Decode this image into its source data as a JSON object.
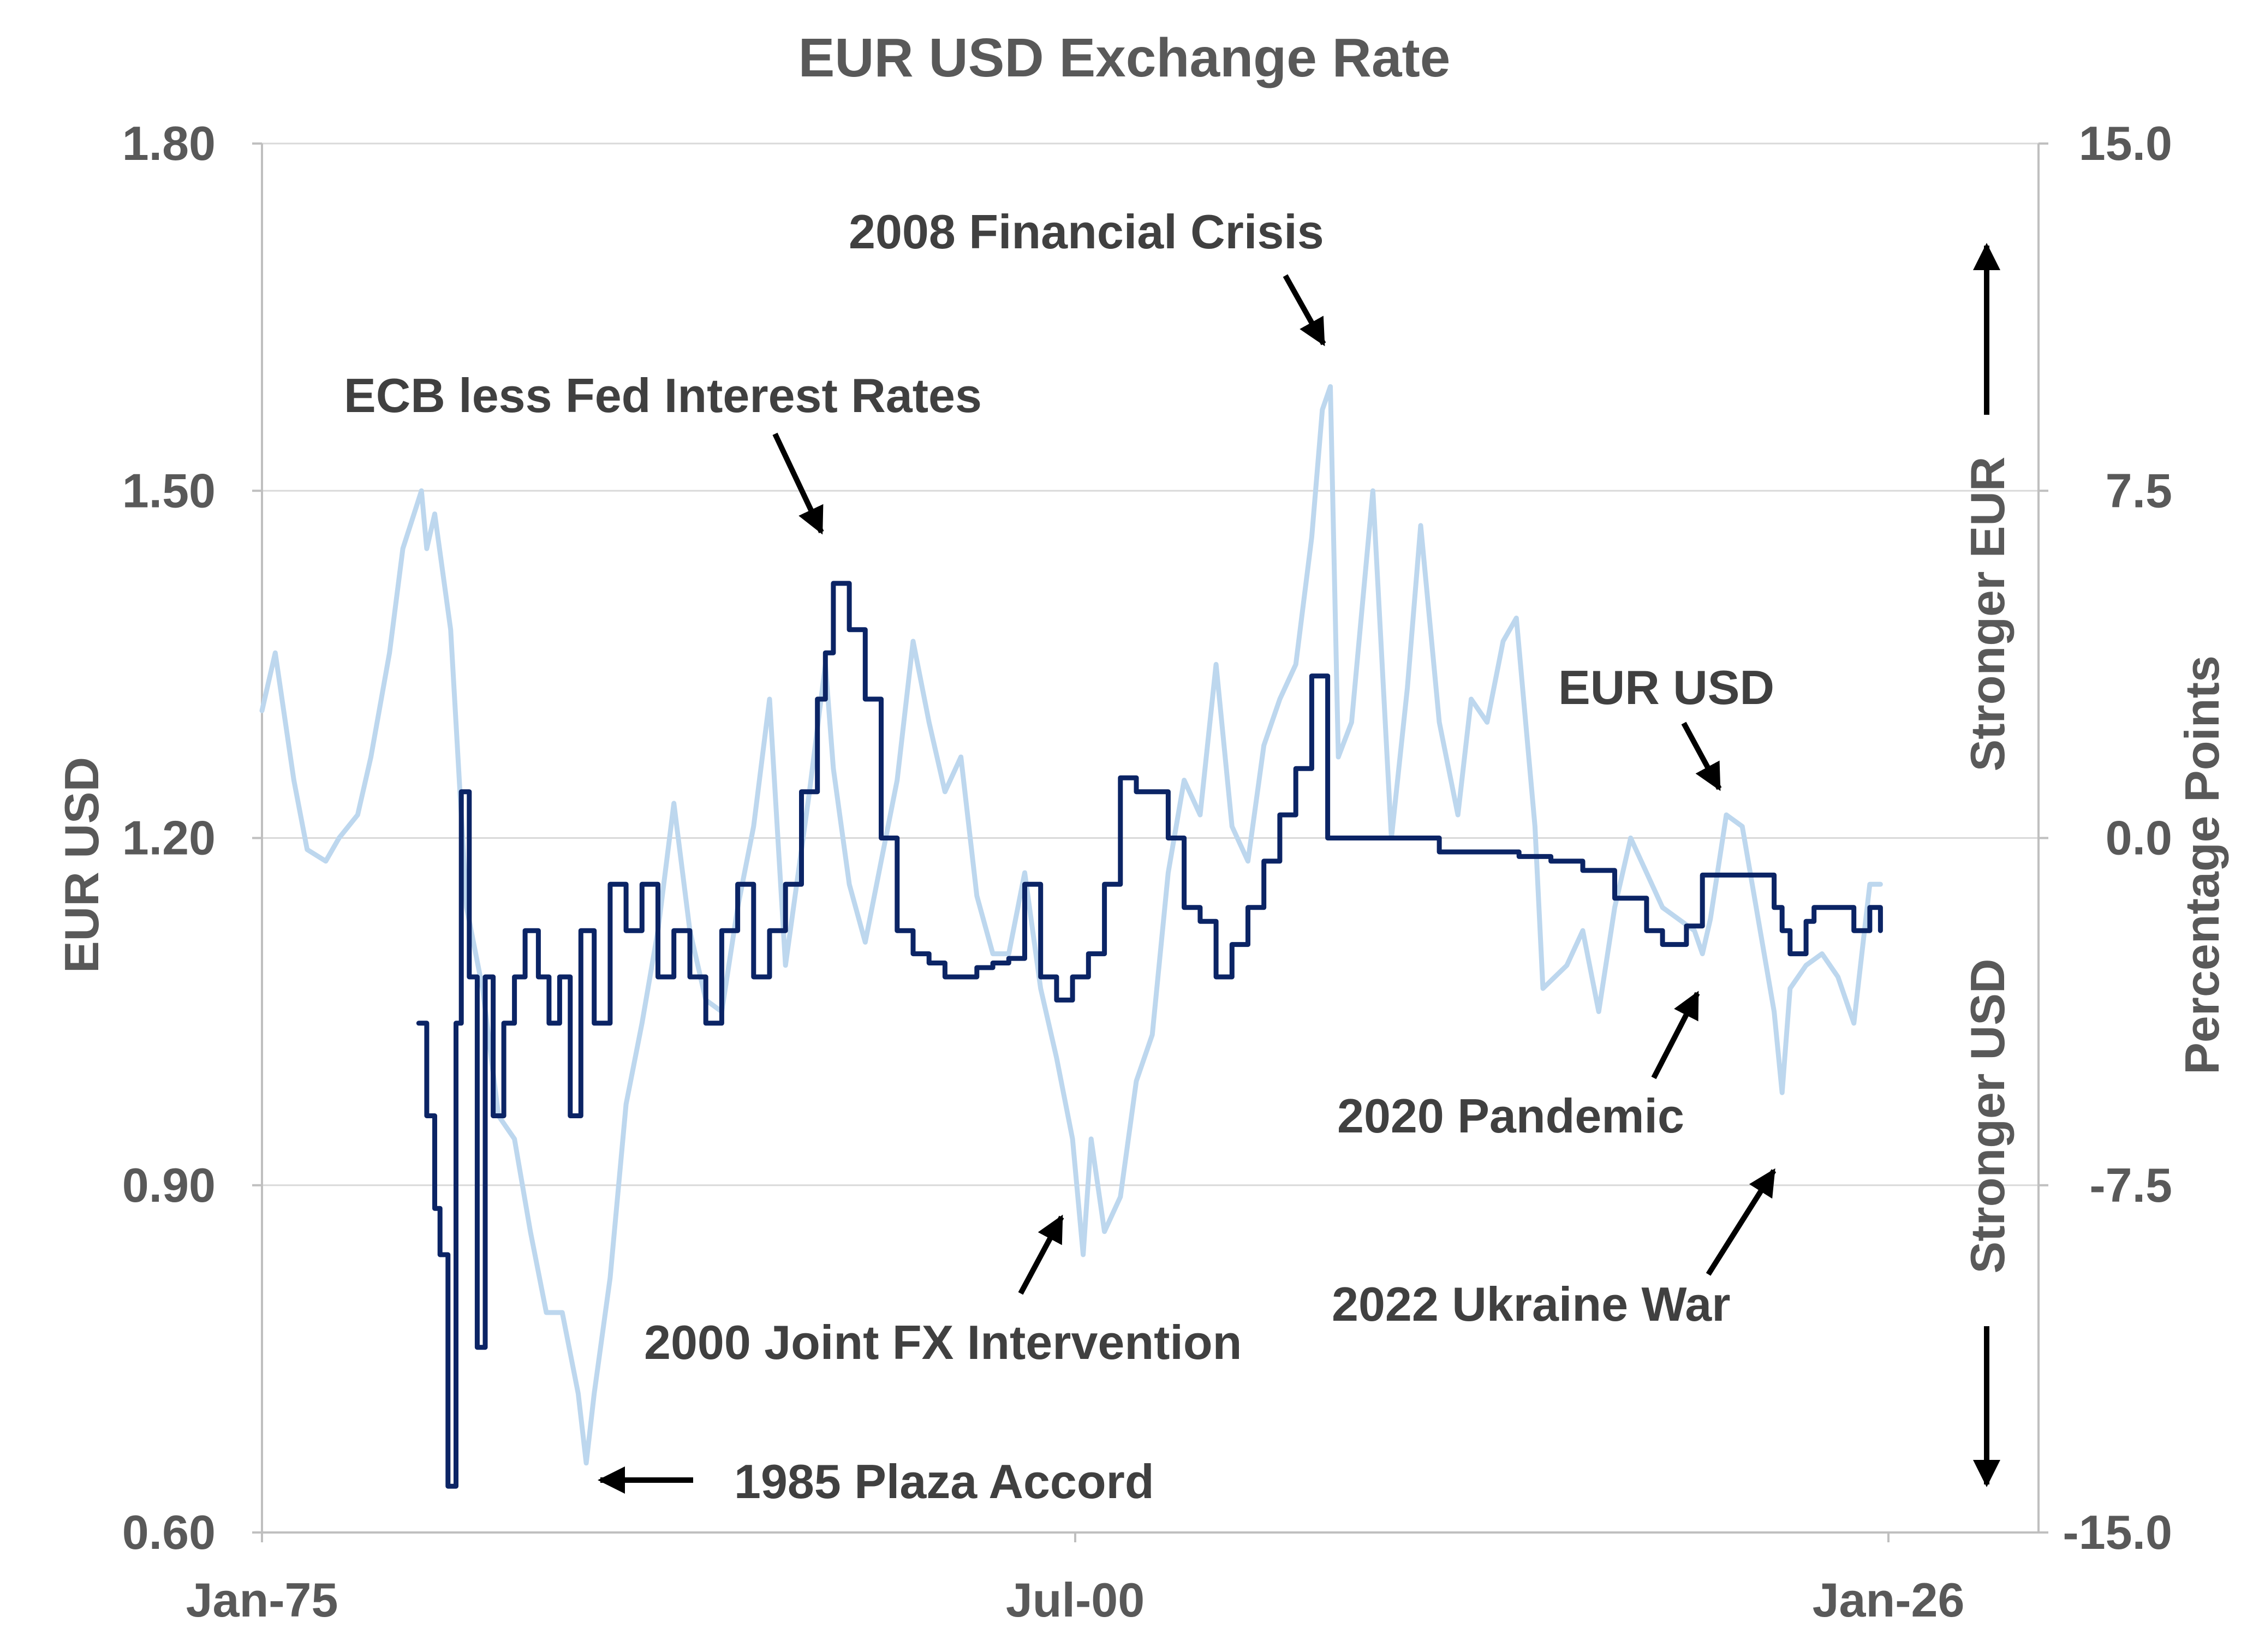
{
  "chart_data": {
    "type": "line",
    "title": "EUR USD Exchange Rate",
    "ylabel": "EUR USD",
    "y2label": "Percentage  Points",
    "ylim": [
      0.6,
      1.8
    ],
    "y2lim": [
      -15.0,
      15.0
    ],
    "xlim": [
      "1975-01",
      "2026-01"
    ],
    "grid": true,
    "x_ticks": [
      "Jan-75",
      "Jul-00",
      "Jan-26"
    ],
    "y_ticks": [
      "1.80",
      "1.50",
      "1.20",
      "0.90",
      "0.60"
    ],
    "y2_ticks": [
      "15.0",
      "7.5",
      "0.0",
      "-7.5",
      "-15.0"
    ],
    "direction_labels": {
      "upper": "Stronger  EUR",
      "lower": "Stronger  USD"
    },
    "annotations": [
      {
        "text": "2008 Financial Crisis",
        "x": "2008-07",
        "y": 1.59
      },
      {
        "text": "ECB less Fed Interest Rates",
        "x": "1992-06",
        "y": 5.6
      },
      {
        "text": "EUR USD",
        "x": "2021-05",
        "y": 1.23
      },
      {
        "text": "2020 Pandemic",
        "x": "2020-03",
        "y": 1.07
      },
      {
        "text": "2000 Joint FX Intervention",
        "x": "2000-10",
        "y": 0.85
      },
      {
        "text": "2022 Ukraine War",
        "x": "2022-09",
        "y": 0.96
      },
      {
        "text": "1985 Plaza Accord",
        "x": "1985-02",
        "y": 0.65
      }
    ],
    "series": [
      {
        "name": "EUR USD",
        "axis": "left",
        "color": "#bdd7ee",
        "x": [
          "1975-01",
          "1975-06",
          "1976-01",
          "1976-06",
          "1977-01",
          "1977-06",
          "1978-01",
          "1978-06",
          "1979-01",
          "1979-06",
          "1980-01",
          "1980-03",
          "1980-06",
          "1980-12",
          "1981-06",
          "1981-12",
          "1982-06",
          "1982-12",
          "1983-06",
          "1983-12",
          "1984-06",
          "1984-12",
          "1985-03",
          "1985-06",
          "1985-12",
          "1986-06",
          "1986-12",
          "1987-06",
          "1987-12",
          "1988-06",
          "1988-12",
          "1989-06",
          "1989-12",
          "1990-06",
          "1990-12",
          "1991-06",
          "1991-12",
          "1992-03",
          "1992-09",
          "1992-12",
          "1993-06",
          "1993-12",
          "1994-06",
          "1994-12",
          "1995-06",
          "1995-12",
          "1996-06",
          "1996-12",
          "1997-06",
          "1997-12",
          "1998-06",
          "1998-12",
          "1999-06",
          "1999-12",
          "2000-06",
          "2000-10",
          "2001-01",
          "2001-06",
          "2001-12",
          "2002-06",
          "2002-12",
          "2003-06",
          "2003-12",
          "2004-06",
          "2004-12",
          "2005-06",
          "2005-12",
          "2006-06",
          "2006-12",
          "2007-06",
          "2007-12",
          "2008-04",
          "2008-07",
          "2008-10",
          "2009-03",
          "2009-11",
          "2010-06",
          "2010-12",
          "2011-05",
          "2011-12",
          "2012-07",
          "2012-12",
          "2013-06",
          "2013-12",
          "2014-05",
          "2014-12",
          "2015-03",
          "2015-12",
          "2016-06",
          "2016-12",
          "2017-06",
          "2017-12",
          "2018-06",
          "2018-12",
          "2019-06",
          "2019-12",
          "2020-03",
          "2020-06",
          "2020-12",
          "2021-06",
          "2021-12",
          "2022-06",
          "2022-09",
          "2022-12",
          "2023-06",
          "2023-12",
          "2024-06",
          "2024-12",
          "2025-06",
          "2025-10"
        ],
        "values": [
          1.31,
          1.36,
          1.25,
          1.19,
          1.18,
          1.2,
          1.22,
          1.27,
          1.36,
          1.45,
          1.5,
          1.45,
          1.48,
          1.38,
          1.14,
          1.07,
          0.96,
          0.94,
          0.86,
          0.79,
          0.79,
          0.72,
          0.66,
          0.72,
          0.82,
          0.97,
          1.04,
          1.12,
          1.23,
          1.12,
          1.06,
          1.05,
          1.14,
          1.21,
          1.32,
          1.09,
          1.19,
          1.24,
          1.35,
          1.26,
          1.16,
          1.11,
          1.18,
          1.25,
          1.37,
          1.3,
          1.24,
          1.27,
          1.15,
          1.1,
          1.1,
          1.17,
          1.07,
          1.01,
          0.94,
          0.84,
          0.94,
          0.86,
          0.89,
          0.99,
          1.03,
          1.17,
          1.25,
          1.22,
          1.35,
          1.21,
          1.18,
          1.28,
          1.32,
          1.35,
          1.46,
          1.57,
          1.59,
          1.27,
          1.3,
          1.5,
          1.2,
          1.33,
          1.47,
          1.3,
          1.22,
          1.32,
          1.3,
          1.37,
          1.39,
          1.21,
          1.07,
          1.09,
          1.12,
          1.05,
          1.14,
          1.2,
          1.17,
          1.14,
          1.13,
          1.12,
          1.1,
          1.13,
          1.22,
          1.21,
          1.13,
          1.05,
          0.98,
          1.07,
          1.09,
          1.1,
          1.08,
          1.04,
          1.16,
          1.16
        ]
      },
      {
        "name": "ECB less Fed Interest Rates",
        "axis": "right",
        "color": "#0b2465",
        "x": [
          "1979-12",
          "1980-03",
          "1980-06",
          "1980-08",
          "1980-11",
          "1981-02",
          "1981-04",
          "1981-07",
          "1981-10",
          "1982-01",
          "1982-04",
          "1982-08",
          "1982-12",
          "1983-04",
          "1983-09",
          "1984-01",
          "1984-05",
          "1984-09",
          "1985-01",
          "1985-06",
          "1985-12",
          "1986-06",
          "1986-12",
          "1987-06",
          "1987-12",
          "1988-06",
          "1988-12",
          "1989-06",
          "1989-12",
          "1990-06",
          "1990-12",
          "1991-06",
          "1991-12",
          "1992-06",
          "1992-09",
          "1992-12",
          "1993-06",
          "1993-12",
          "1994-06",
          "1994-12",
          "1995-06",
          "1995-12",
          "1996-06",
          "1997-01",
          "1997-06",
          "1997-12",
          "1998-06",
          "1998-12",
          "1999-06",
          "1999-12",
          "2000-06",
          "2000-12",
          "2001-06",
          "2001-12",
          "2002-06",
          "2003-06",
          "2003-12",
          "2004-06",
          "2004-12",
          "2005-06",
          "2005-12",
          "2006-06",
          "2006-12",
          "2007-06",
          "2007-12",
          "2008-06",
          "2008-10",
          "2009-01",
          "2009-06",
          "2010-06",
          "2011-06",
          "2011-12",
          "2012-06",
          "2013-06",
          "2014-06",
          "2015-06",
          "2016-06",
          "2017-06",
          "2018-06",
          "2018-12",
          "2019-06",
          "2019-09",
          "2020-03",
          "2020-09",
          "2021-06",
          "2022-03",
          "2022-06",
          "2022-09",
          "2022-12",
          "2023-06",
          "2023-09",
          "2024-06",
          "2024-12",
          "2025-06",
          "2025-10"
        ],
        "values": [
          -4.0,
          -6.0,
          -8.0,
          -9.0,
          -14.0,
          -4.0,
          1.0,
          -3.0,
          -11.0,
          -3.0,
          -6.0,
          -4.0,
          -3.0,
          -2.0,
          -3.0,
          -4.0,
          -3.0,
          -6.0,
          -2.0,
          -4.0,
          -1.0,
          -2.0,
          -1.0,
          -3.0,
          -2.0,
          -3.0,
          -4.0,
          -2.0,
          -1.0,
          -3.0,
          -2.0,
          -1.0,
          1.0,
          3.0,
          4.0,
          5.5,
          4.5,
          3.0,
          0.0,
          -2.0,
          -2.5,
          -2.7,
          -3.0,
          -3.0,
          -2.8,
          -2.7,
          -2.6,
          -1.0,
          -3.0,
          -3.5,
          -3.0,
          -2.5,
          -1.0,
          1.3,
          1.0,
          0.0,
          -1.5,
          -1.8,
          -3.0,
          -2.3,
          -1.5,
          -0.5,
          0.5,
          1.5,
          3.5,
          0.0,
          0.0,
          0.0,
          0.0,
          0.0,
          0.0,
          -0.3,
          -0.3,
          -0.3,
          -0.4,
          -0.5,
          -0.7,
          -1.3,
          -2.0,
          -2.3,
          -2.3,
          -1.9,
          -0.8,
          -0.8,
          -0.8,
          -0.8,
          -1.5,
          -2.0,
          -2.5,
          -1.8,
          -1.5,
          -1.5,
          -2.0,
          -1.5,
          -2.0
        ]
      }
    ]
  }
}
